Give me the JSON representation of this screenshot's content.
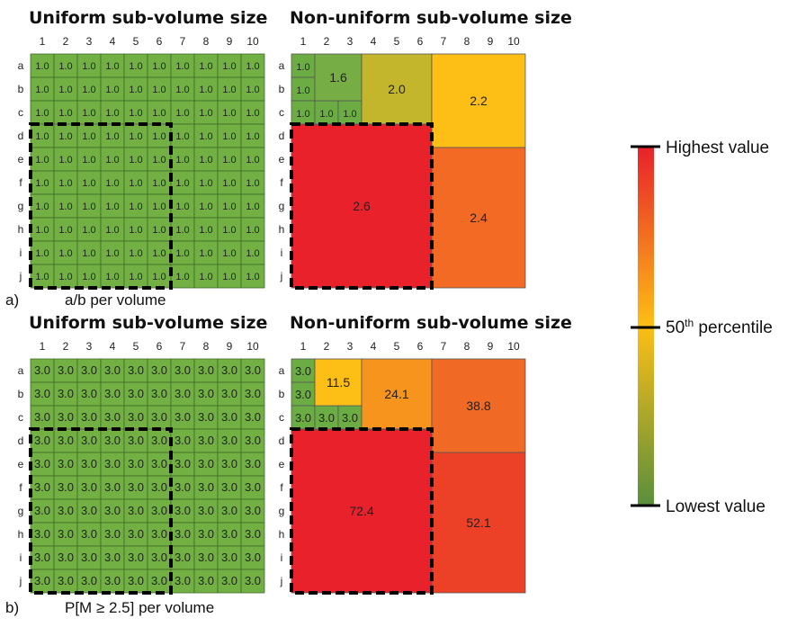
{
  "panels": [
    {
      "letter": "a)",
      "caption": "a/b per volume",
      "uniform": {
        "title": "Uniform sub-volume size",
        "value": "1.0",
        "color": "#72b043"
      },
      "nonuniform": {
        "title": "Non-uniform sub-volume size",
        "blocks": [
          {
            "value": "1.0",
            "color": "#6cad43"
          },
          {
            "value": "1.0",
            "color": "#6cad43"
          },
          {
            "value": "1.0",
            "color": "#6cad43"
          },
          {
            "value": "1.0",
            "color": "#6cad43"
          },
          {
            "value": "1.0",
            "color": "#6cad43"
          },
          {
            "value": "1.6",
            "color": "#76ad45"
          },
          {
            "value": "2.0",
            "color": "#c4b62c"
          },
          {
            "value": "2.2",
            "color": "#fdbe16"
          },
          {
            "value": "2.6",
            "color": "#e8212a"
          },
          {
            "value": "2.4",
            "color": "#f26a24"
          }
        ]
      }
    },
    {
      "letter": "b)",
      "caption": "P[M ≥ 2.5] per volume",
      "uniform": {
        "title": "Uniform sub-volume size",
        "value": "3.0",
        "color": "#72b043"
      },
      "nonuniform": {
        "title": "Non-uniform sub-volume size",
        "blocks": [
          {
            "value": "3.0",
            "color": "#6cad43"
          },
          {
            "value": "3.0",
            "color": "#6cad43"
          },
          {
            "value": "3.0",
            "color": "#6cad43"
          },
          {
            "value": "3.0",
            "color": "#6cad43"
          },
          {
            "value": "3.0",
            "color": "#6cad43"
          },
          {
            "value": "11.5",
            "color": "#fdbe16"
          },
          {
            "value": "24.1",
            "color": "#f7941e"
          },
          {
            "value": "38.8",
            "color": "#f06a25"
          },
          {
            "value": "72.4",
            "color": "#e8212a"
          },
          {
            "value": "52.1",
            "color": "#ec4127"
          }
        ]
      }
    }
  ],
  "columns": [
    "1",
    "2",
    "3",
    "4",
    "5",
    "6",
    "7",
    "8",
    "9",
    "10"
  ],
  "rows": [
    "a",
    "b",
    "c",
    "d",
    "e",
    "f",
    "g",
    "h",
    "i",
    "j"
  ],
  "legend": {
    "high_label": "Highest value",
    "mid_label": "50",
    "mid_sup": "th",
    "mid_suffix": " percentile",
    "low_label": "Lowest value",
    "colors": {
      "high": "#e8212a",
      "mid": "#fdbe16",
      "low": "#5a8f3c"
    }
  }
}
